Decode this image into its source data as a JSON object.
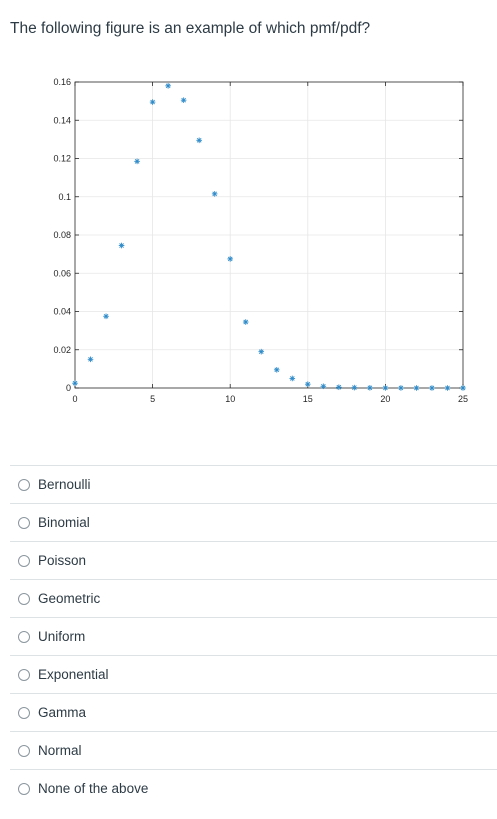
{
  "question": {
    "text": "The following figure is an example of which pmf/pdf?"
  },
  "options": [
    {
      "label": "Bernoulli"
    },
    {
      "label": "Binomial"
    },
    {
      "label": "Poisson"
    },
    {
      "label": "Geometric"
    },
    {
      "label": "Uniform"
    },
    {
      "label": "Exponential"
    },
    {
      "label": "Gamma"
    },
    {
      "label": "Normal"
    },
    {
      "label": "None of the above"
    }
  ],
  "chart_data": {
    "type": "scatter",
    "title": "",
    "xlabel": "",
    "ylabel": "",
    "xlim": [
      0,
      25
    ],
    "ylim": [
      0,
      0.16
    ],
    "xticks": [
      "0",
      "5",
      "10",
      "15",
      "20",
      "25"
    ],
    "yticks": [
      "0",
      "0.02",
      "0.04",
      "0.06",
      "0.08",
      "0.1",
      "0.12",
      "0.14",
      "0.16"
    ],
    "grid": true,
    "marker": "asterisk",
    "marker_color": "#2e8bc9",
    "x": [
      0,
      1,
      2,
      3,
      4,
      5,
      6,
      7,
      8,
      9,
      10,
      11,
      12,
      13,
      14,
      15,
      16,
      17,
      18,
      19,
      20,
      21,
      22,
      23,
      24,
      25
    ],
    "y": [
      0.0025,
      0.015,
      0.0375,
      0.0745,
      0.1185,
      0.1495,
      0.158,
      0.1505,
      0.1295,
      0.1015,
      0.0675,
      0.0345,
      0.019,
      0.0095,
      0.005,
      0.002,
      0.0009,
      0.0004,
      0.0002,
      0.0001,
      5e-05,
      2e-05,
      1e-05,
      0.0,
      0.0,
      0.0
    ]
  }
}
